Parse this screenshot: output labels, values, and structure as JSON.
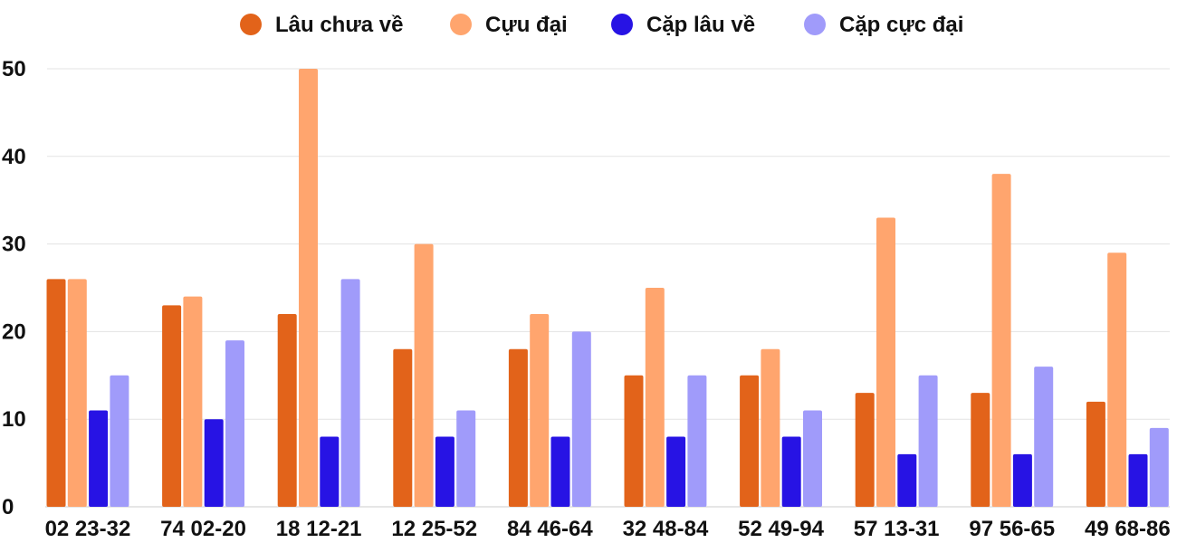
{
  "chart_data": {
    "type": "bar",
    "categories": [
      "02 23-32",
      "74 02-20",
      "18 12-21",
      "12 25-52",
      "84 46-64",
      "32 48-84",
      "52 49-94",
      "57 13-31",
      "97 56-65",
      "49 68-86"
    ],
    "series": [
      {
        "name": "Lâu chưa về",
        "color": "#E2631A",
        "values": [
          26,
          23,
          22,
          18,
          18,
          15,
          15,
          13,
          13,
          12
        ]
      },
      {
        "name": "Cựu đại",
        "color": "#FFA56E",
        "values": [
          26,
          24,
          50,
          30,
          22,
          25,
          18,
          33,
          38,
          29
        ]
      },
      {
        "name": "Cặp lâu về",
        "color": "#2713E4",
        "values": [
          11,
          10,
          8,
          8,
          8,
          8,
          8,
          6,
          6,
          6
        ]
      },
      {
        "name": "Cặp cực đại",
        "color": "#A09BFA",
        "values": [
          15,
          19,
          26,
          11,
          20,
          15,
          11,
          15,
          16,
          9
        ]
      }
    ],
    "ylim": [
      0,
      50
    ],
    "yticks": [
      0,
      10,
      20,
      30,
      40,
      50
    ],
    "grid": true,
    "legend_position": "top"
  }
}
